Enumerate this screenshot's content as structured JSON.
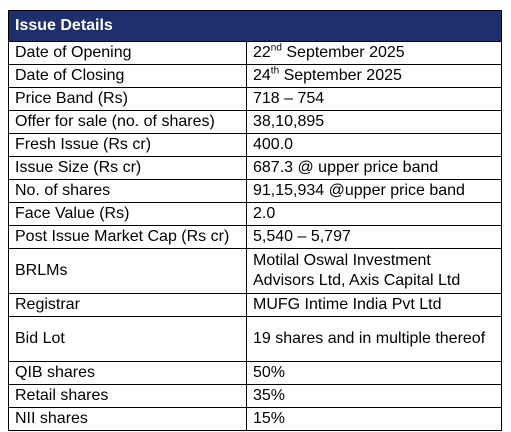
{
  "table": {
    "title": "Issue Details",
    "rows": [
      {
        "label": "Date of Opening",
        "value_day": "22",
        "value_sup": "nd",
        "value_rest": " September 2025"
      },
      {
        "label": "Date of Closing",
        "value_day": "24",
        "value_sup": "th",
        "value_rest": " September 2025"
      },
      {
        "label": "Price Band (Rs)",
        "value": "718 – 754"
      },
      {
        "label": "Offer for sale (no. of shares)",
        "value": "38,10,895"
      },
      {
        "label": "Fresh Issue (Rs cr)",
        "value": "400.0"
      },
      {
        "label": "Issue Size (Rs cr)",
        "value": "687.3 @ upper price band"
      },
      {
        "label": "No. of shares",
        "value": "91,15,934 @upper price band"
      },
      {
        "label": "Face Value (Rs)",
        "value": "2.0"
      },
      {
        "label": "Post Issue Market Cap (Rs cr)",
        "value": "5,540 – 5,797"
      },
      {
        "label": "BRLMs",
        "value": "Motilal Oswal Investment Advisors Ltd, Axis Capital Ltd"
      },
      {
        "label": "Registrar",
        "value": "MUFG Intime India Pvt Ltd"
      },
      {
        "label": "Bid Lot",
        "value": "19 shares and in multiple thereof"
      },
      {
        "label": "QIB shares",
        "value": "50%"
      },
      {
        "label": "Retail shares",
        "value": "35%"
      },
      {
        "label": "NII shares",
        "value": "15%"
      }
    ]
  },
  "colors": {
    "header_bg": "#1f2f6e",
    "header_text": "#ffffff",
    "border": "#000000"
  }
}
